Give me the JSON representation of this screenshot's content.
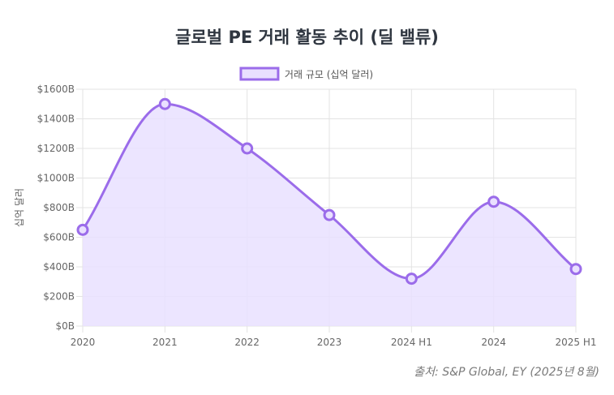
{
  "chart_data": {
    "type": "area",
    "title": "글로벌 PE 거래 활동 추이 (딜 밸류)",
    "legend": "거래 규모 (십억 달러)",
    "legend_position": "top",
    "ylabel": "십억 달러",
    "xlabel": "",
    "categories": [
      "2020",
      "2021",
      "2022",
      "2023",
      "2024 H1",
      "2024",
      "2025 H1"
    ],
    "values": [
      650,
      1500,
      1200,
      750,
      320,
      840,
      385
    ],
    "ylim": [
      0,
      1600
    ],
    "yticks": [
      "$0B",
      "$200B",
      "$400B",
      "$600B",
      "$800B",
      "$1000B",
      "$1200B",
      "$1400B",
      "$1600B"
    ],
    "grid": true,
    "colors": {
      "line": "#9b6cea",
      "fill": "#e9e0ff",
      "grid": "#e3e3e3"
    }
  },
  "source": "출처: S&P Global, EY (2025년 8월)"
}
